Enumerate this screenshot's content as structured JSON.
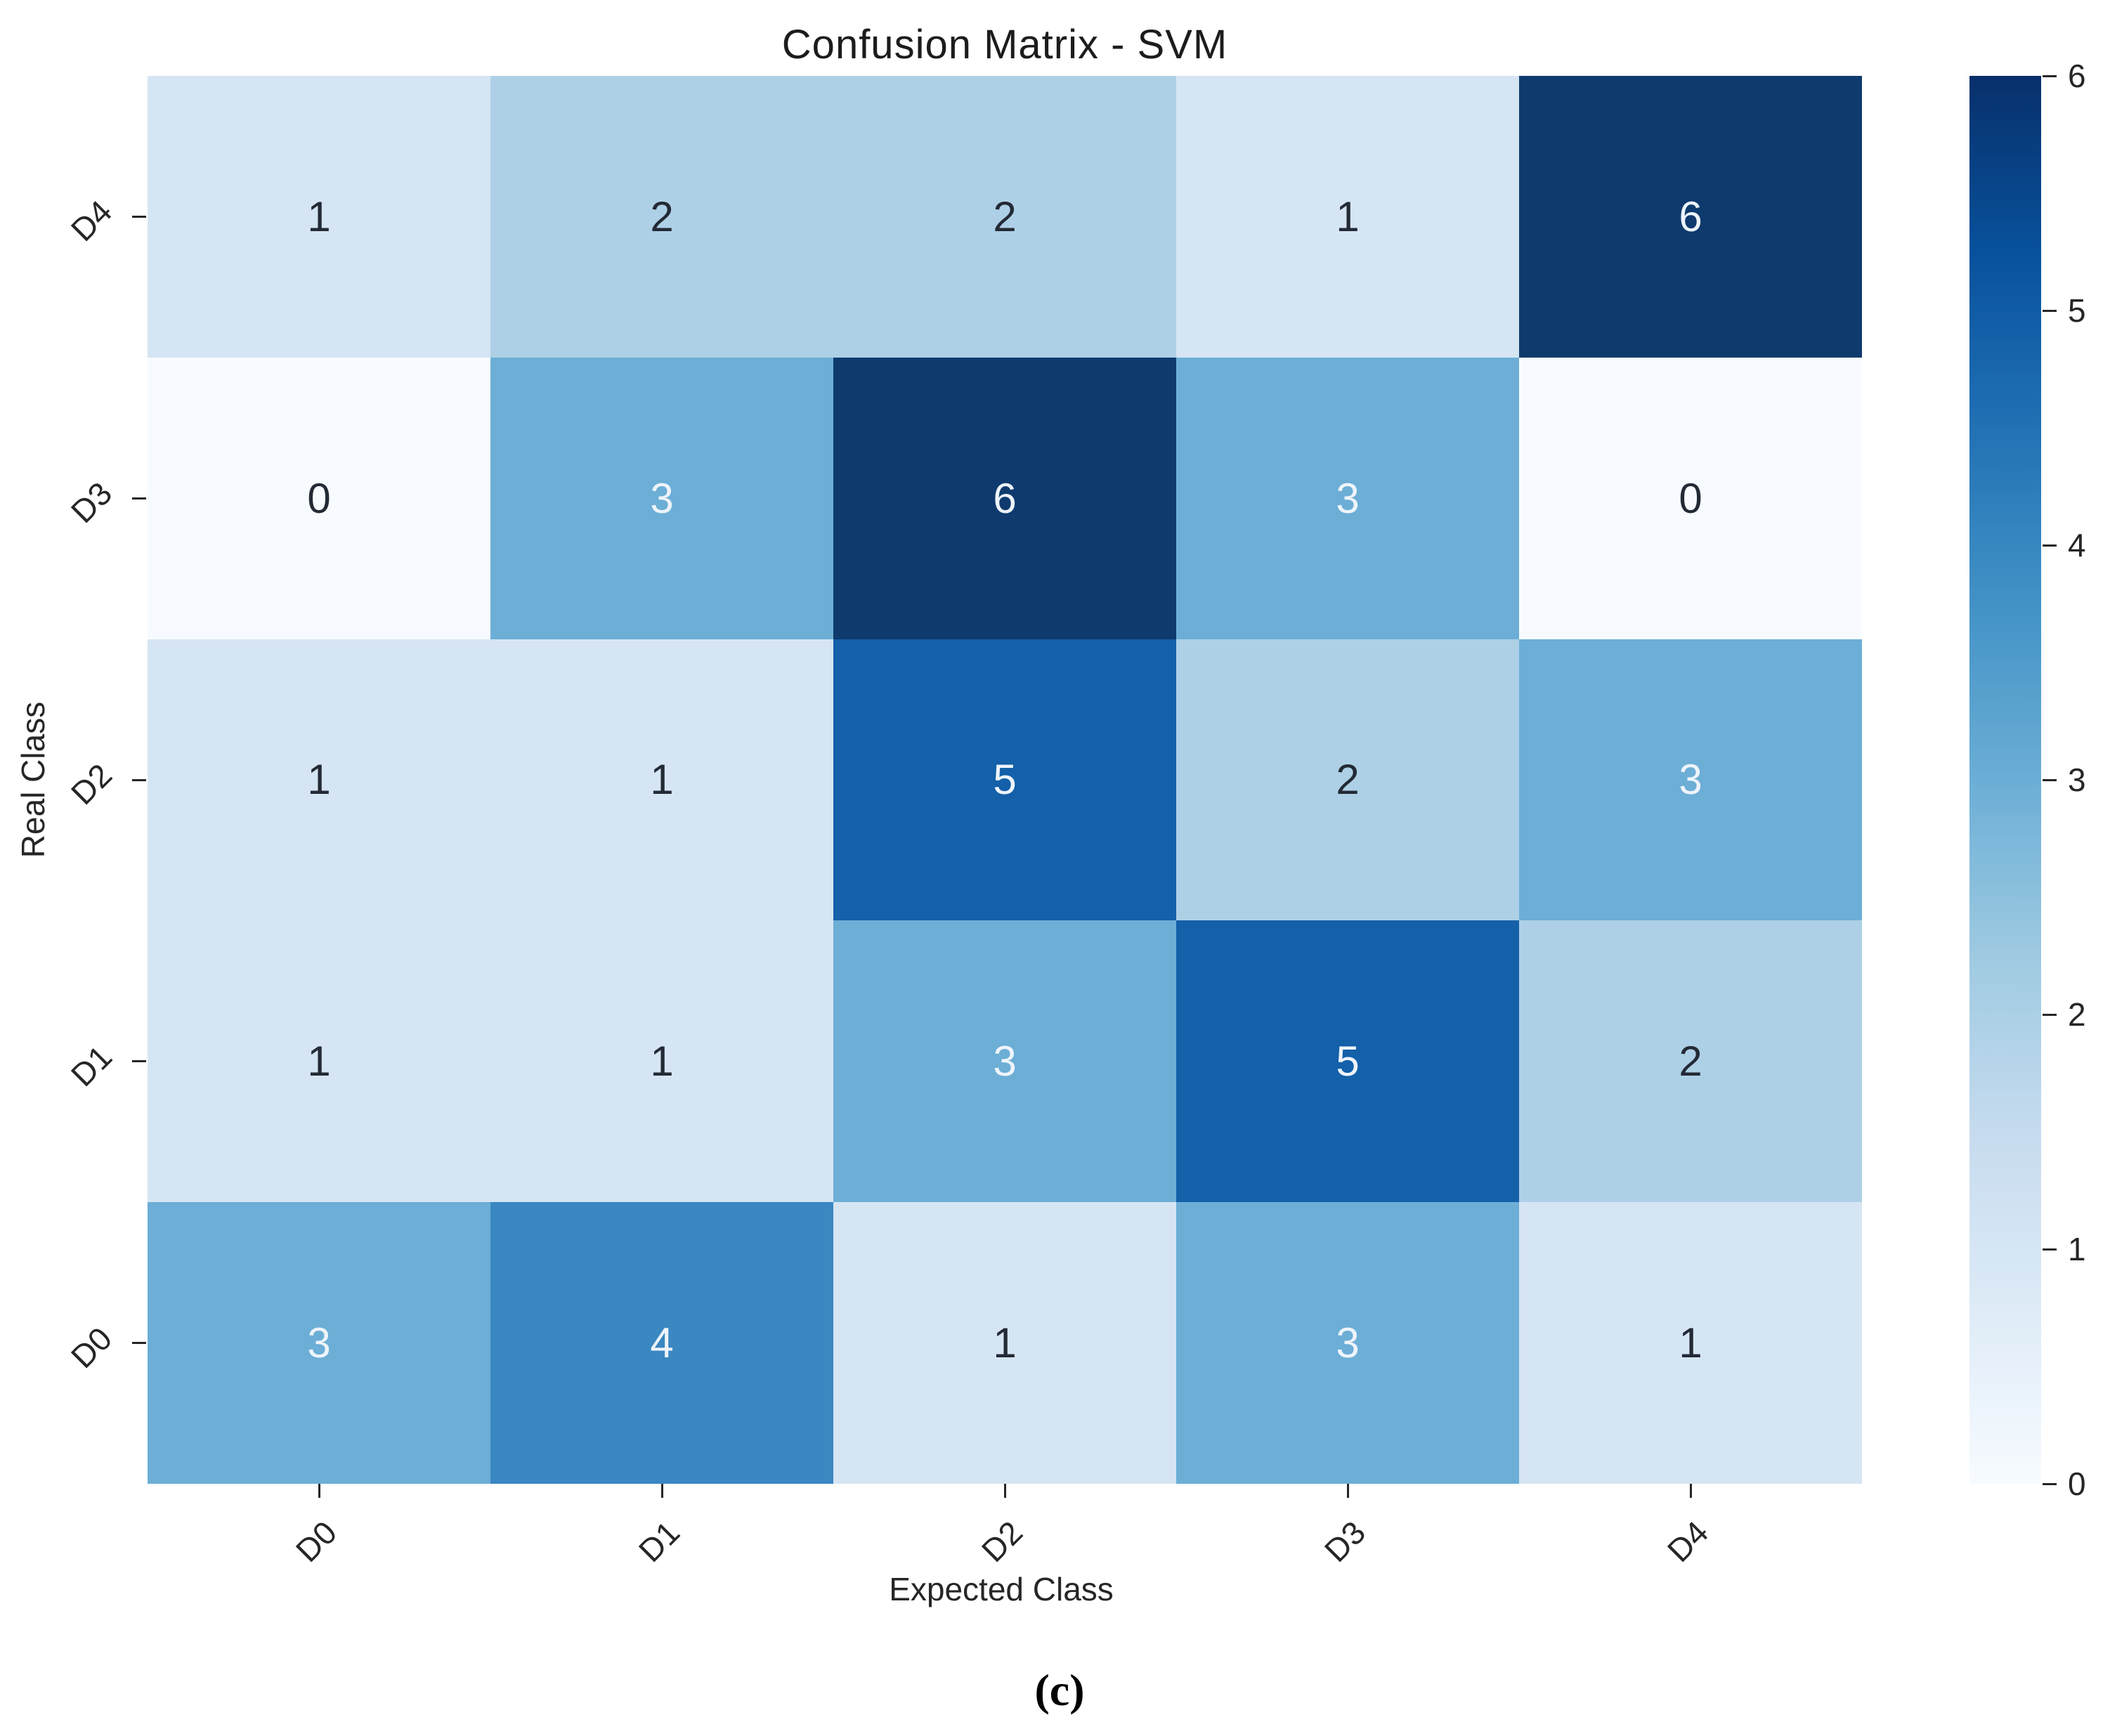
{
  "title": "Confusion Matrix - SVM",
  "caption": "(c)",
  "axes": {
    "x_label": "Expected Class",
    "y_label": "Real Class"
  },
  "chart_data": {
    "type": "heatmap",
    "title": "Confusion Matrix - SVM",
    "xlabel": "Expected Class",
    "ylabel": "Real Class",
    "x_categories": [
      "D0",
      "D1",
      "D2",
      "D3",
      "D4"
    ],
    "y_categories_top_to_bottom": [
      "D4",
      "D3",
      "D2",
      "D1",
      "D0"
    ],
    "matrix_rows_top_to_bottom": [
      [
        1,
        2,
        2,
        1,
        6
      ],
      [
        0,
        3,
        6,
        3,
        0
      ],
      [
        1,
        1,
        5,
        2,
        3
      ],
      [
        1,
        1,
        3,
        5,
        2
      ],
      [
        3,
        4,
        1,
        3,
        1
      ]
    ],
    "colormap": "Blues",
    "vmin": 0,
    "vmax": 6,
    "colorbar_ticks": [
      6,
      5,
      4,
      3,
      2,
      1,
      0
    ],
    "value_colors": {
      "0": "#f7fbff",
      "1": "#d6e5f4",
      "2": "#aed0e6",
      "3": "#6caed6",
      "4": "#3a87c1",
      "5": "#1460a9",
      "6": "#0f3a6e"
    },
    "white_text_threshold": 3,
    "annotation_dark_text_color": "#232a35",
    "annotation_light_text_color": "#eef4fa",
    "colorbar_gradient_stops_bottom_to_top": [
      "#f7fbff",
      "#deebf7",
      "#c6dbef",
      "#9ecae1",
      "#6baed6",
      "#4292c6",
      "#2171b5",
      "#08519c",
      "#08306b"
    ],
    "grid": false,
    "legend_position": "right-colorbar"
  }
}
